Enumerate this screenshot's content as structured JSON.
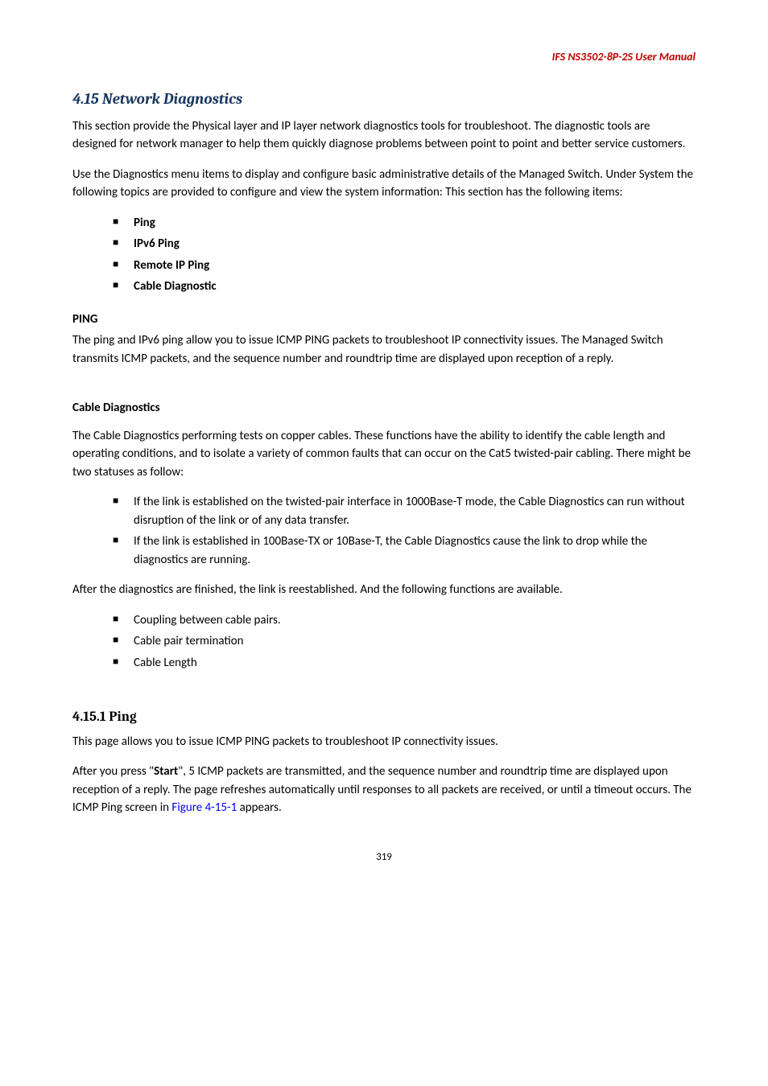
{
  "header": {
    "manual_title": "IFS  NS3502-8P-2S  User  Manual"
  },
  "section_4_15": {
    "title": "4.15 Network Diagnostics",
    "para1": "This section provide the Physical layer and IP layer network diagnostics tools for troubleshoot. The diagnostic tools are designed for network manager to help them quickly diagnose problems between point to point and better service customers.",
    "para2": "Use the Diagnostics menu items to display and configure basic administrative details of the Managed Switch. Under System the following topics are provided to configure and view the system information: This section has the following items:",
    "items": [
      "Ping",
      "IPv6 Ping",
      "Remote IP Ping",
      "Cable Diagnostic"
    ]
  },
  "ping_section": {
    "heading": "PING",
    "para": "The ping and IPv6 ping allow you to issue ICMP PING packets to troubleshoot IP connectivity issues. The Managed Switch transmits ICMP packets, and the sequence number and roundtrip time are displayed upon reception of a reply."
  },
  "cable_section": {
    "heading": "Cable Diagnostics",
    "para1": "The Cable Diagnostics performing tests on copper cables. These functions have the ability to identify the cable length and operating conditions, and to isolate a variety of common faults that can occur on the Cat5 twisted-pair cabling. There might be two statuses as follow:",
    "bullets1": [
      "If the link is established on the twisted-pair interface in 1000Base-T mode, the Cable Diagnostics can run without disruption of the link or of any data transfer.",
      "If the link is established in 100Base-TX or 10Base-T, the Cable Diagnostics cause the link to drop while the diagnostics are running."
    ],
    "para2": "After the diagnostics are finished, the link is reestablished. And the following functions are available.",
    "bullets2": [
      "Coupling between cable pairs.",
      "Cable pair termination",
      "Cable Length"
    ]
  },
  "section_4_15_1": {
    "title": "4.15.1 Ping",
    "para1": "This page allows you to issue ICMP PING packets to troubleshoot IP connectivity issues.",
    "para2_pre": "After you press \"",
    "start_label": "Start",
    "para2_mid": "\", 5 ICMP packets are transmitted, and the sequence number and roundtrip time are displayed upon reception of a reply. The page refreshes automatically until responses to all packets are received, or until a timeout occurs. The ICMP Ping screen in ",
    "figure_ref": "Figure 4-15-1",
    "para2_post": " appears."
  },
  "footer": {
    "page_number": "319"
  }
}
